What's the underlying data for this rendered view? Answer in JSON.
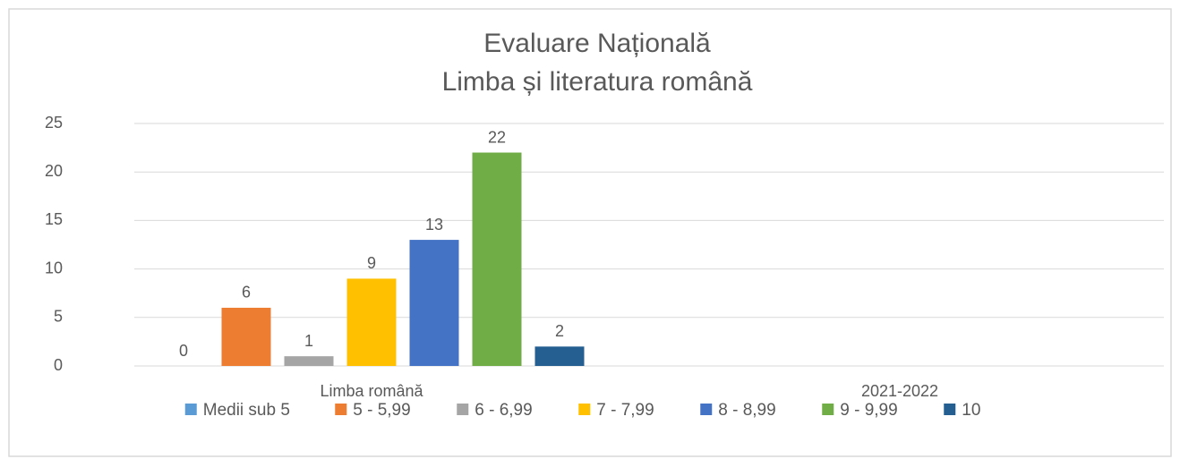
{
  "chart_data": {
    "type": "bar",
    "title": [
      "Evaluare Națională",
      "Limba și literatura română"
    ],
    "categories": [
      "Limba română",
      "2021-2022"
    ],
    "series": [
      {
        "name": "Medii sub 5",
        "color": "#5b9bd5",
        "values": [
          0,
          null
        ]
      },
      {
        "name": "5 - 5,99",
        "color": "#ed7d31",
        "values": [
          6,
          null
        ]
      },
      {
        "name": "6 - 6,99",
        "color": "#a5a5a5",
        "values": [
          1,
          null
        ]
      },
      {
        "name": "7 - 7,99",
        "color": "#ffc000",
        "values": [
          9,
          null
        ]
      },
      {
        "name": "8 - 8,99",
        "color": "#4472c4",
        "values": [
          13,
          null
        ]
      },
      {
        "name": "9 - 9,99",
        "color": "#70ad47",
        "values": [
          22,
          null
        ]
      },
      {
        "name": "10",
        "color": "#255e91",
        "values": [
          2,
          null
        ]
      }
    ],
    "ylim": [
      0,
      25
    ],
    "yticks": [
      0,
      5,
      10,
      15,
      20,
      25
    ],
    "grid": true,
    "legend": "bottom"
  }
}
